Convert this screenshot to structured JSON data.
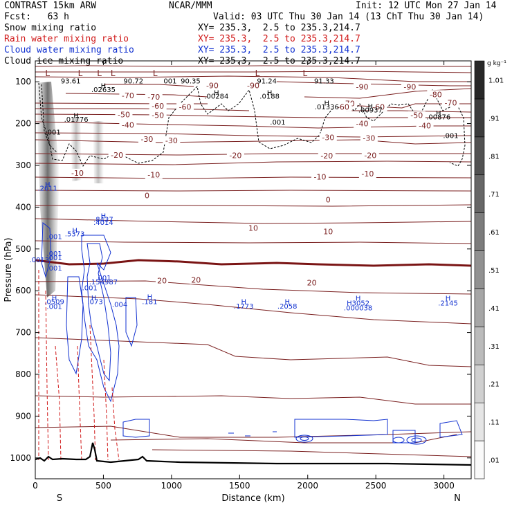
{
  "header": {
    "line1_left": "CONTRAST 15km ARW",
    "line1_center": "NCAR/MMM",
    "line1_right": "Init: 12 UTC Mon 27 Jan 14",
    "line2_left": "Fcst:   63 h",
    "line2_right": "Valid: 03 UTC Thu 30 Jan 14 (13 ChT Thu 30 Jan 14)",
    "fields": [
      {
        "name": "Snow mixing ratio",
        "xy": "XY= 235.3,  2.5 to 235.3,214.7",
        "color": "#000000"
      },
      {
        "name": "Rain water mixing ratio",
        "xy": "XY= 235.3,  2.5 to 235.3,214.7",
        "color": "#d01818"
      },
      {
        "name": "Cloud water mixing ratio",
        "xy": "XY= 235.3,  2.5 to 235.3,214.7",
        "color": "#1030d0"
      },
      {
        "name": "Cloud ice mixing ratio",
        "xy": "XY= 235.3,  2.5 to 235.3,214.7",
        "color": "#000000"
      }
    ]
  },
  "colors": {
    "temperature": "#7a1f1f",
    "freezing_line": "#7a1414",
    "rain": "#d01818",
    "cloud_water": "#1030d0",
    "cloud_ice": "#000000",
    "terrain": "#000000",
    "snow_shading": "#555555"
  },
  "chart_data": {
    "type": "cross-section",
    "xlabel": "Distance (km)",
    "ylabel": "Pressure (hPa)",
    "xlim": [
      0,
      3200
    ],
    "ylim": [
      1050,
      50
    ],
    "xticks": [
      0,
      500,
      1000,
      1500,
      2000,
      2500,
      3000
    ],
    "yticks": [
      100,
      200,
      300,
      400,
      500,
      600,
      700,
      800,
      900,
      1000
    ],
    "x_end_labels": {
      "left": "S",
      "right": "N"
    },
    "colorbar": {
      "unit": "g kg⁻¹",
      "levels": [
        ".01",
        ".11",
        ".21",
        ".31",
        ".41",
        ".51",
        ".61",
        ".71",
        ".81",
        ".91",
        "1.01"
      ]
    },
    "temperature_contours": [
      {
        "label": "-90",
        "at": [
          [
            1300,
            109
          ],
          [
            1600,
            109
          ],
          [
            2400,
            112
          ],
          [
            2750,
            112
          ]
        ]
      },
      {
        "label": "-80",
        "at": [
          [
            2940,
            130
          ]
        ]
      },
      {
        "label": "-70",
        "at": [
          [
            680,
            133
          ],
          [
            870,
            136
          ],
          [
            2300,
            152
          ],
          [
            3050,
            150
          ]
        ]
      },
      {
        "label": "-60",
        "at": [
          [
            900,
            158
          ],
          [
            1100,
            160
          ],
          [
            2260,
            160
          ],
          [
            2520,
            160
          ]
        ]
      },
      {
        "label": "-50",
        "at": [
          [
            650,
            178
          ],
          [
            900,
            180
          ],
          [
            2800,
            180
          ]
        ]
      },
      {
        "label": "-40",
        "at": [
          [
            680,
            203
          ],
          [
            2400,
            200
          ],
          [
            2860,
            205
          ]
        ]
      },
      {
        "label": "-30",
        "at": [
          [
            820,
            237
          ],
          [
            1000,
            240
          ],
          [
            2150,
            233
          ],
          [
            2450,
            235
          ]
        ]
      },
      {
        "label": "-20",
        "at": [
          [
            600,
            275
          ],
          [
            1470,
            276
          ],
          [
            2140,
            277
          ],
          [
            2460,
            276
          ]
        ]
      },
      {
        "label": "-10",
        "at": [
          [
            310,
            318
          ],
          [
            870,
            322
          ],
          [
            2090,
            327
          ],
          [
            2440,
            320
          ]
        ]
      },
      {
        "label": "0",
        "at": [
          [
            820,
            372
          ],
          [
            2150,
            382
          ]
        ]
      },
      {
        "label": "10",
        "at": [
          [
            1600,
            450
          ],
          [
            2150,
            458
          ]
        ]
      },
      {
        "label": "20",
        "at": [
          [
            930,
            576
          ],
          [
            1180,
            574
          ],
          [
            2030,
            581
          ]
        ]
      }
    ],
    "maxima": [
      {
        "label": "L",
        "x": 90,
        "p": 80
      },
      {
        "label": "L",
        "x": 330,
        "p": 80
      },
      {
        "label": "L",
        "x": 470,
        "p": 80
      },
      {
        "label": "L",
        "x": 570,
        "p": 80
      },
      {
        "label": "L",
        "x": 880,
        "p": 80
      },
      {
        "label": "L",
        "x": 1630,
        "p": 80
      },
      {
        "label": "L",
        "x": 1980,
        "p": 80
      },
      {
        "label": "93.61",
        "x": 260,
        "p": 97
      },
      {
        "label": "90.72",
        "x": 720,
        "p": 97
      },
      {
        "label": "001",
        "x": 990,
        "p": 97
      },
      {
        "label": "90.35",
        "x": 1140,
        "p": 97
      },
      {
        "label": "91.24",
        "x": 1700,
        "p": 97
      },
      {
        "label": "91.33",
        "x": 2120,
        "p": 97
      },
      {
        "label": "H",
        "x": 500,
        "p": 109
      },
      {
        "label": ".02635",
        "x": 500,
        "p": 118
      },
      {
        "label": "H",
        "x": 1330,
        "p": 125
      },
      {
        "label": ".00284",
        "x": 1330,
        "p": 134
      },
      {
        "label": "H",
        "x": 1720,
        "p": 125
      },
      {
        "label": ".0188",
        "x": 1720,
        "p": 134
      },
      {
        "label": "H",
        "x": 2140,
        "p": 150
      },
      {
        "label": ".01336",
        "x": 2140,
        "p": 159
      },
      {
        "label": "H",
        "x": 2460,
        "p": 158
      },
      {
        "label": ".00937",
        "x": 2460,
        "p": 167
      },
      {
        "label": "H",
        "x": 2960,
        "p": 174
      },
      {
        "label": ".00876",
        "x": 2960,
        "p": 183
      },
      {
        "label": "H",
        "x": 300,
        "p": 180
      },
      {
        "label": ".01776",
        "x": 300,
        "p": 189
      },
      {
        "label": ".001",
        "x": 1780,
        "p": 196
      },
      {
        "label": ".001",
        "x": 130,
        "p": 220
      },
      {
        "label": ".001",
        "x": 3050,
        "p": 228
      },
      {
        "label": "H",
        "x": 90,
        "p": 345
      },
      {
        "label": ".2611",
        "x": 90,
        "p": 354
      },
      {
        "label": "H",
        "x": 500,
        "p": 420
      },
      {
        "label": ".8437",
        "x": 500,
        "p": 428
      },
      {
        "label": ".4014",
        "x": 500,
        "p": 436
      },
      {
        "label": "H",
        "x": 290,
        "p": 455
      },
      {
        "label": ".5373",
        "x": 290,
        "p": 463
      },
      {
        "label": ".001",
        "x": 140,
        "p": 470
      },
      {
        "label": ".001",
        "x": 140,
        "p": 510
      },
      {
        "label": ".001",
        "x": 140,
        "p": 545
      },
      {
        "label": ".001",
        "x": 140,
        "p": 520
      },
      {
        "label": ".0013",
        "x": 30,
        "p": 525
      },
      {
        "label": ".001",
        "x": 500,
        "p": 568
      },
      {
        "label": ".154987",
        "x": 500,
        "p": 578
      },
      {
        "label": ".001",
        "x": 400,
        "p": 592
      },
      {
        "label": "H",
        "x": 140,
        "p": 616
      },
      {
        "label": ".0509",
        "x": 140,
        "p": 625
      },
      {
        "label": ".001",
        "x": 140,
        "p": 637
      },
      {
        "label": "H",
        "x": 430,
        "p": 616
      },
      {
        "label": ".073",
        "x": 440,
        "p": 625
      },
      {
        "label": ".004",
        "x": 620,
        "p": 632
      },
      {
        "label": "H",
        "x": 840,
        "p": 614
      },
      {
        "label": ".181",
        "x": 840,
        "p": 625
      },
      {
        "label": "H",
        "x": 1530,
        "p": 625
      },
      {
        "label": ".1773",
        "x": 1530,
        "p": 636
      },
      {
        "label": "H",
        "x": 1850,
        "p": 625
      },
      {
        "label": ".2058",
        "x": 1850,
        "p": 636
      },
      {
        "label": "H",
        "x": 2370,
        "p": 617
      },
      {
        "label": "H3052",
        "x": 2370,
        "p": 629
      },
      {
        "label": ".000038",
        "x": 2370,
        "p": 640
      },
      {
        "label": "H",
        "x": 3030,
        "p": 617
      },
      {
        "label": ".2145",
        "x": 3030,
        "p": 629
      }
    ]
  }
}
